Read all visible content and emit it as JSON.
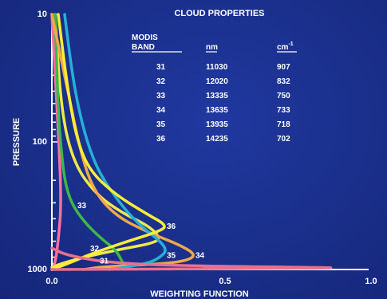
{
  "chart_data": {
    "type": "line",
    "title": "CLOUD PROPERTIES",
    "xlabel": "WEIGHTING FUNCTION",
    "ylabel": "PRESSURE",
    "xlim": [
      0.0,
      1.0
    ],
    "ylim": [
      1000,
      10
    ],
    "yscale": "log",
    "x_ticks": [
      "0.0",
      "0.5",
      "1.0"
    ],
    "y_ticks": [
      "10",
      "100",
      "1000"
    ],
    "grid": false,
    "table": {
      "headers": [
        "MODIS BAND",
        "nm",
        "cm-1"
      ],
      "header_col1_line1": "MODIS",
      "header_col1_line2": "BAND",
      "header_col2": "nm",
      "header_col3_base": "cm",
      "header_col3_exp": "-1",
      "rows": [
        [
          "31",
          "11030",
          "907"
        ],
        [
          "32",
          "12020",
          "832"
        ],
        [
          "33",
          "13335",
          "750"
        ],
        [
          "34",
          "13635",
          "733"
        ],
        [
          "35",
          "13935",
          "718"
        ],
        [
          "36",
          "14235",
          "702"
        ]
      ]
    },
    "series": [
      {
        "name": "31",
        "color": "#ff6fa0",
        "label_at": {
          "x": 0.15,
          "p": 900
        },
        "points": [
          [
            0.0,
            1000
          ],
          [
            0.01,
            900
          ],
          [
            0.02,
            600
          ],
          [
            0.03,
            300
          ],
          [
            0.02,
            80
          ],
          [
            0.0,
            10
          ]
        ]
      },
      {
        "name": "32",
        "color": "#f0e84a",
        "label_at": {
          "x": 0.12,
          "p": 720
        },
        "points": [
          [
            0.0,
            960
          ],
          [
            0.04,
            880
          ],
          [
            0.12,
            780
          ],
          [
            0.22,
            690
          ],
          [
            0.32,
            620
          ],
          [
            0.34,
            560
          ],
          [
            0.3,
            450
          ],
          [
            0.22,
            360
          ],
          [
            0.14,
            260
          ],
          [
            0.07,
            150
          ],
          [
            0.03,
            60
          ],
          [
            0.01,
            10
          ]
        ]
      },
      {
        "name": "33",
        "color": "#3db84a",
        "label_at": {
          "x": 0.08,
          "p": 330
        },
        "points": [
          [
            0.23,
            980
          ],
          [
            0.22,
            860
          ],
          [
            0.2,
            700
          ],
          [
            0.15,
            560
          ],
          [
            0.1,
            420
          ],
          [
            0.06,
            300
          ],
          [
            0.04,
            200
          ],
          [
            0.03,
            120
          ],
          [
            0.02,
            60
          ],
          [
            0.01,
            10
          ]
        ]
      },
      {
        "name": "34",
        "color": "#f0a84a",
        "label_at": {
          "x": 0.45,
          "p": 810
        },
        "points": [
          [
            0.1,
            1000
          ],
          [
            0.16,
            950
          ],
          [
            0.36,
            900
          ],
          [
            0.43,
            840
          ],
          [
            0.45,
            760
          ],
          [
            0.4,
            640
          ],
          [
            0.3,
            510
          ],
          [
            0.2,
            380
          ],
          [
            0.13,
            240
          ],
          [
            0.09,
            120
          ],
          [
            0.05,
            40
          ],
          [
            0.0,
            10
          ]
        ]
      },
      {
        "name": "35",
        "color": "#27b0d6",
        "label_at": {
          "x": 0.36,
          "p": 810
        },
        "points": [
          [
            0.18,
            1000
          ],
          [
            0.3,
            900
          ],
          [
            0.34,
            800
          ],
          [
            0.36,
            710
          ],
          [
            0.34,
            600
          ],
          [
            0.28,
            460
          ],
          [
            0.22,
            320
          ],
          [
            0.15,
            180
          ],
          [
            0.11,
            100
          ],
          [
            0.08,
            50
          ],
          [
            0.06,
            25
          ],
          [
            0.04,
            10
          ]
        ]
      },
      {
        "name": "36",
        "color": "#ffee33",
        "label_at": {
          "x": 0.36,
          "p": 480
        },
        "points": [
          [
            0.0,
            1000
          ],
          [
            0.05,
            900
          ],
          [
            0.12,
            760
          ],
          [
            0.22,
            620
          ],
          [
            0.34,
            500
          ],
          [
            0.36,
            450
          ],
          [
            0.3,
            370
          ],
          [
            0.2,
            260
          ],
          [
            0.12,
            170
          ],
          [
            0.08,
            100
          ],
          [
            0.05,
            40
          ],
          [
            0.02,
            10
          ]
        ]
      },
      {
        "name": "31-pink",
        "color": "#e8708f",
        "label_at": null,
        "points": [
          [
            0.0,
            1000
          ],
          [
            0.6,
            985
          ],
          [
            0.98,
            970
          ],
          [
            0.5,
            945
          ],
          [
            0.2,
            900
          ],
          [
            0.05,
            780
          ],
          [
            0.0,
            680
          ]
        ]
      }
    ]
  }
}
